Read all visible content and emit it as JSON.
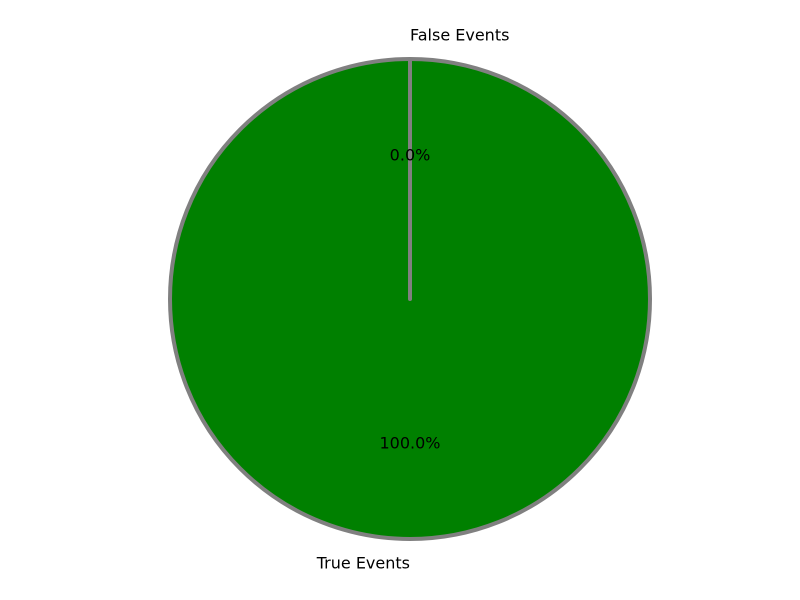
{
  "chart_data": {
    "type": "pie",
    "labels": [
      "True Events",
      "False Events"
    ],
    "values": [
      100.0,
      0.0
    ],
    "percent_labels": [
      "100.0%",
      "0.0%"
    ],
    "colors": [
      "#008000",
      "#ff0000"
    ],
    "edge_color": "#808080",
    "start_angle_deg": 90,
    "direction": "counterclockwise"
  }
}
